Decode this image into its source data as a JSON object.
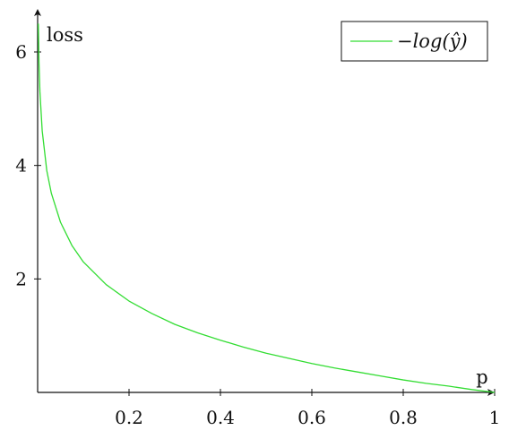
{
  "chart_data": {
    "type": "line",
    "title": "",
    "xlabel": "p",
    "ylabel": "loss",
    "xlim": [
      0,
      1
    ],
    "ylim": [
      0,
      6.6
    ],
    "x_ticks": [
      {
        "value": 0.2,
        "label": "0.2"
      },
      {
        "value": 0.4,
        "label": "0.4"
      },
      {
        "value": 0.6,
        "label": "0.6"
      },
      {
        "value": 0.8,
        "label": "0.8"
      },
      {
        "value": 1,
        "label": "1"
      }
    ],
    "y_ticks": [
      {
        "value": 2,
        "label": "2"
      },
      {
        "value": 4,
        "label": "4"
      },
      {
        "value": 6,
        "label": "6"
      }
    ],
    "grid": false,
    "legend_position": "top-right",
    "series": [
      {
        "name": "−log(ŷ)",
        "color": "#33dd33",
        "x": [
          0.0015,
          0.003,
          0.005,
          0.01,
          0.02,
          0.03,
          0.05,
          0.075,
          0.1,
          0.15,
          0.2,
          0.25,
          0.3,
          0.35,
          0.4,
          0.45,
          0.5,
          0.55,
          0.6,
          0.65,
          0.7,
          0.75,
          0.8,
          0.85,
          0.9,
          0.95,
          1.0
        ],
        "y": [
          6.5,
          5.81,
          5.3,
          4.61,
          3.91,
          3.51,
          3.0,
          2.59,
          2.3,
          1.9,
          1.61,
          1.39,
          1.2,
          1.05,
          0.92,
          0.8,
          0.69,
          0.6,
          0.51,
          0.43,
          0.36,
          0.29,
          0.22,
          0.16,
          0.11,
          0.05,
          0.0
        ]
      }
    ]
  }
}
